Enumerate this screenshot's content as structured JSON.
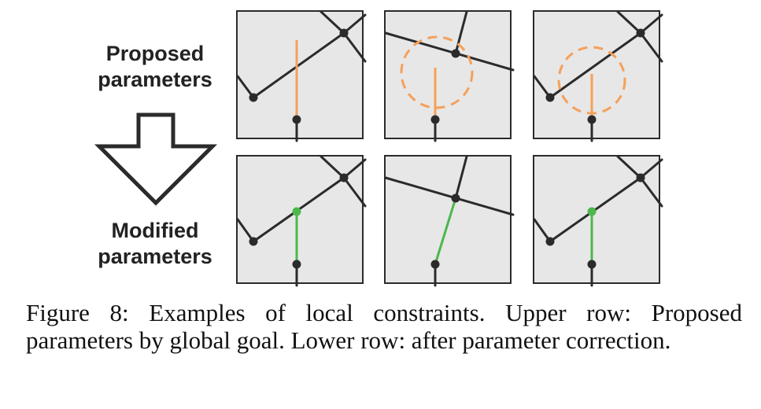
{
  "labels": {
    "top_line1": "Proposed",
    "top_line2": "parameters",
    "bottom_line1": "Modified",
    "bottom_line2": "parameters"
  },
  "caption": "Figure 8: Examples of local constraints. Upper row: Proposed parameters by global goal. Lower row: after parameter correction.",
  "colors": {
    "road": "#2b2b2b",
    "proposed": "#f5a05a",
    "modified": "#4cb84c",
    "panel_bg": "#e7e7e7"
  }
}
